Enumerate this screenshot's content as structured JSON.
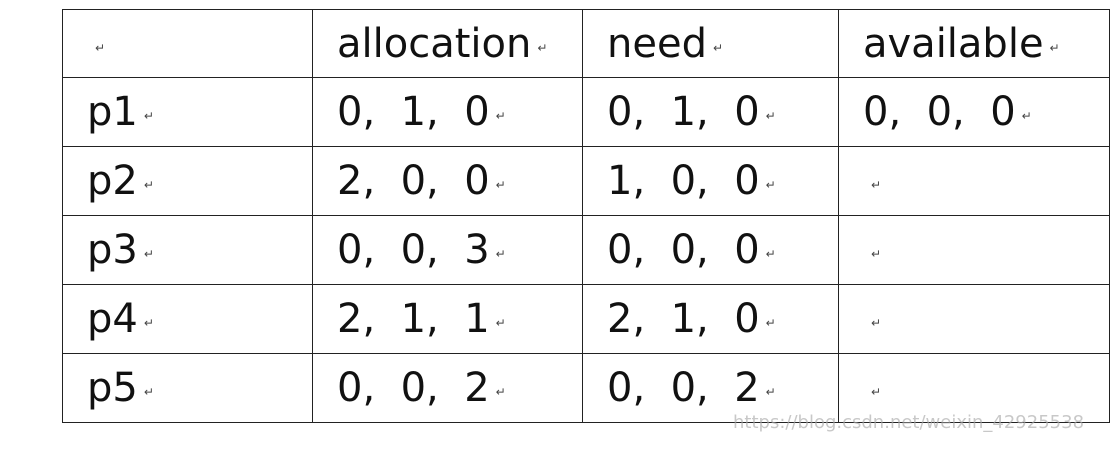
{
  "paragraph_mark": "↵",
  "table": {
    "header": [
      "",
      "allocation",
      "need",
      "available"
    ],
    "rows": [
      [
        "p1",
        "0,  1,  0",
        "0,  1,  0",
        "0,  0,  0"
      ],
      [
        "p2",
        "2,  0,  0",
        "1,  0,  0",
        ""
      ],
      [
        "p3",
        "0,  0,  3",
        "0,  0,  0",
        ""
      ],
      [
        "p4",
        "2,  1,  1",
        "2,  1,  0",
        ""
      ],
      [
        "p5",
        "0,  0,  2",
        "0,  0,  2",
        ""
      ]
    ]
  },
  "watermark": "https://blog.csdn.net/weixin_42925538"
}
